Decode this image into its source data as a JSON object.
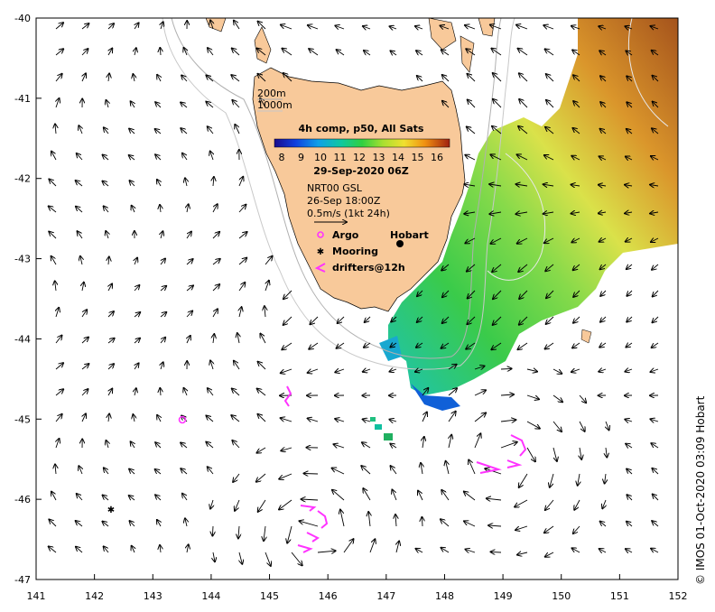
{
  "map": {
    "lon_ticks": [
      "141",
      "142",
      "143",
      "144",
      "145",
      "146",
      "147",
      "148",
      "149",
      "150",
      "151",
      "152"
    ],
    "lat_ticks": [
      "-40",
      "-41",
      "-42",
      "-43",
      "-44",
      "-45",
      "-46",
      "-47"
    ],
    "lon_range": [
      141,
      152
    ],
    "lat_range": [
      -47,
      -40
    ]
  },
  "legend": {
    "depth_200": "200m",
    "depth_1000": "1000m",
    "colorbar_title": "4h comp, p50, All Sats",
    "colorbar_ticks": [
      "8",
      "9",
      "10",
      "11",
      "12",
      "13",
      "14",
      "15",
      "16"
    ],
    "date": "29-Sep-2020 06Z",
    "current_source": "NRT00 GSL",
    "current_time": "26-Sep 18:00Z",
    "current_scale": "0.5m/s (1kt 24h)",
    "argo_label": "Argo",
    "mooring_label": "Mooring",
    "drifters_label": "drifters@12h"
  },
  "places": {
    "hobart": "Hobart"
  },
  "credit": "© IMOS 01-Oct-2020 03:09 Hobart",
  "colors": {
    "land": "#f8c99a",
    "drifter": "#ff33ff",
    "argo": "#ff33ff",
    "contour_200": "#b0b0b0",
    "contour_1000": "#c8c8c8"
  },
  "markers": {
    "argo": [
      {
        "lon": 143.5,
        "lat": -45.0
      }
    ],
    "mooring": [
      {
        "lon": 142.3,
        "lat": -46.1
      }
    ]
  }
}
